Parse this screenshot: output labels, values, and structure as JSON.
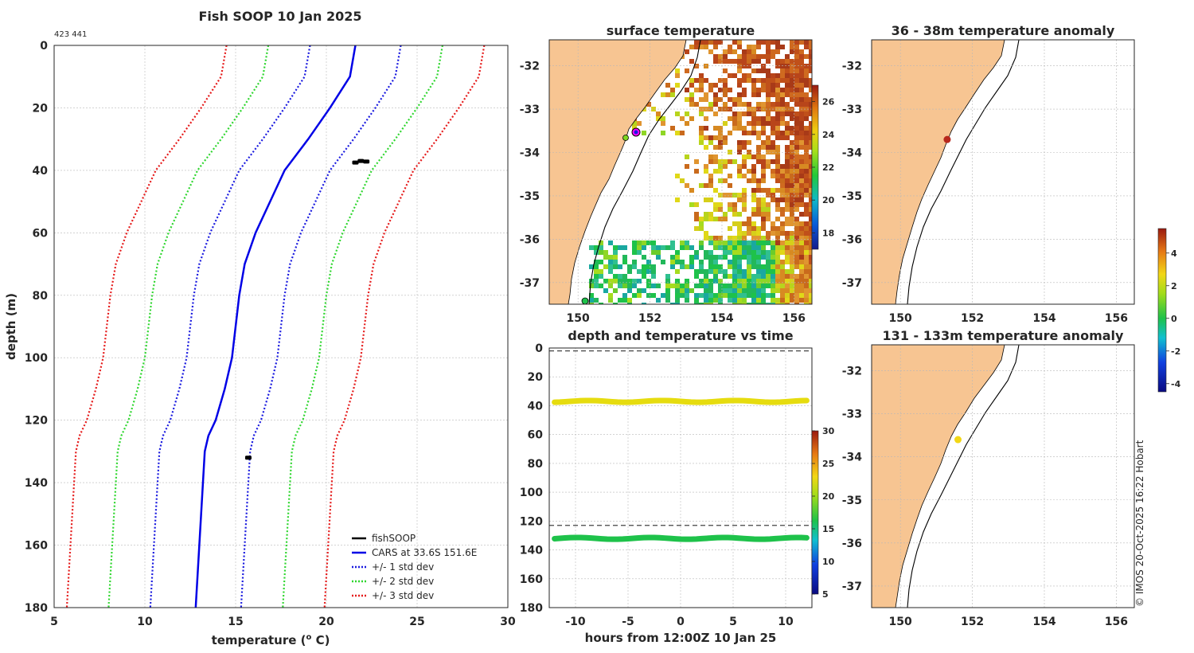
{
  "colors": {
    "land": "#f7c592",
    "cars": "#0000e6",
    "std1": "#1a1adf",
    "std2": "#2ed62e",
    "std3": "#e51a1a",
    "fish": "#000000"
  },
  "figure": {
    "title": "Fish SOOP 10 Jan 2025",
    "ids": "423 441",
    "credit": "© IMOS 20-Oct-2025 16:22 Hobart"
  },
  "chart_data": [
    {
      "id": "profile",
      "type": "line",
      "xlabel": "temperature (",
      "xlabel_sup": "o",
      "xlabel_unit": " C)",
      "ylabel": "depth (m)",
      "xlim": [
        5,
        30
      ],
      "ylim": [
        0,
        180
      ],
      "xticks": [
        5,
        10,
        15,
        20,
        25,
        30
      ],
      "yticks": [
        0,
        20,
        40,
        60,
        80,
        100,
        120,
        140,
        160,
        180
      ],
      "depth": [
        0,
        10,
        20,
        30,
        40,
        50,
        60,
        70,
        80,
        90,
        100,
        110,
        120,
        125,
        130,
        140,
        150,
        160,
        170,
        180
      ],
      "cars_mean": [
        21.6,
        21.3,
        20.2,
        19.0,
        17.7,
        16.9,
        16.1,
        15.5,
        15.2,
        15.0,
        14.8,
        14.4,
        13.9,
        13.5,
        13.3,
        13.2,
        13.1,
        13.0,
        12.9,
        12.8
      ],
      "std_offsets": [
        2.5,
        4.8,
        7.1
      ],
      "fish_points": [
        {
          "temp": 21.6,
          "depth": 37.5
        },
        {
          "temp": 21.9,
          "depth": 37.0
        },
        {
          "temp": 22.2,
          "depth": 37.2
        },
        {
          "temp": 15.7,
          "depth": 132.0
        }
      ],
      "legend": [
        {
          "label": "fishSOOP",
          "color": "#000000",
          "style": "solid"
        },
        {
          "label": "CARS at 33.6S 151.6E",
          "color": "#0000e6",
          "style": "solid"
        },
        {
          "label": "+/- 1 std dev",
          "color": "#1a1adf",
          "style": "dotted"
        },
        {
          "label": "+/- 2 std dev",
          "color": "#2ed62e",
          "style": "dotted"
        },
        {
          "label": "+/- 3 std dev",
          "color": "#e51a1a",
          "style": "dotted"
        }
      ]
    },
    {
      "id": "sst_map",
      "type": "heatmap",
      "title": "surface temperature",
      "xlim": [
        149.2,
        156.5
      ],
      "ylim": [
        -37.5,
        -31.4
      ],
      "xticks": [
        150,
        152,
        154,
        156
      ],
      "yticks": [
        -32,
        -33,
        -34,
        -35,
        -36,
        -37
      ],
      "colorbar": {
        "min": 17,
        "max": 27,
        "ticks": [
          18,
          20,
          22,
          24,
          26
        ]
      },
      "markers": [
        {
          "lon": 151.6,
          "lat": -33.6,
          "label": "ship position"
        },
        {
          "lon": 151.4,
          "lat": -33.75,
          "label": "green point"
        }
      ]
    },
    {
      "id": "depth_time",
      "type": "scatter",
      "title": "depth and temperature vs time",
      "xlabel": "hours from 12:00Z 10 Jan 25",
      "xlim": [
        -12.5,
        12.5
      ],
      "ylim": [
        0,
        180
      ],
      "xticks": [
        -10,
        -5,
        0,
        5,
        10
      ],
      "yticks": [
        0,
        20,
        40,
        60,
        80,
        100,
        120,
        140,
        160,
        180
      ],
      "series": [
        {
          "name": "shallow sensor",
          "depth": 37,
          "temperature": 22.7,
          "color": "#e6dc0f"
        },
        {
          "name": "deep sensor",
          "depth": 132,
          "temperature": 15.9,
          "color": "#1ec24a"
        }
      ],
      "dashed_lines": [
        2,
        123
      ],
      "colorbar": {
        "min": 5,
        "max": 30,
        "ticks": [
          5,
          10,
          15,
          20,
          25,
          30
        ]
      }
    },
    {
      "id": "anom_shallow",
      "type": "scatter",
      "title": "36 - 38m temperature anomaly",
      "xlim": [
        149.2,
        156.5
      ],
      "ylim": [
        -37.5,
        -31.4
      ],
      "xticks": [
        150,
        152,
        154,
        156
      ],
      "yticks": [
        -32,
        -33,
        -34,
        -35,
        -36,
        -37
      ],
      "points": [
        {
          "lon": 151.3,
          "lat": -33.7,
          "anomaly": 4.2,
          "color": "#b7281d"
        }
      ]
    },
    {
      "id": "anom_deep",
      "type": "scatter",
      "title": "131 - 133m temperature anomaly",
      "xlim": [
        149.2,
        156.5
      ],
      "ylim": [
        -37.5,
        -31.4
      ],
      "xticks": [
        150,
        152,
        154,
        156
      ],
      "yticks": [
        -32,
        -33,
        -34,
        -35,
        -36,
        -37
      ],
      "points": [
        {
          "lon": 151.6,
          "lat": -33.6,
          "anomaly": 2.1,
          "color": "#f2d716"
        }
      ]
    },
    {
      "id": "anom_colorbar",
      "type": "heatmap",
      "colorbar": {
        "min": -4.5,
        "max": 5.5,
        "ticks": [
          4,
          2,
          0,
          -2,
          -4
        ]
      }
    }
  ]
}
